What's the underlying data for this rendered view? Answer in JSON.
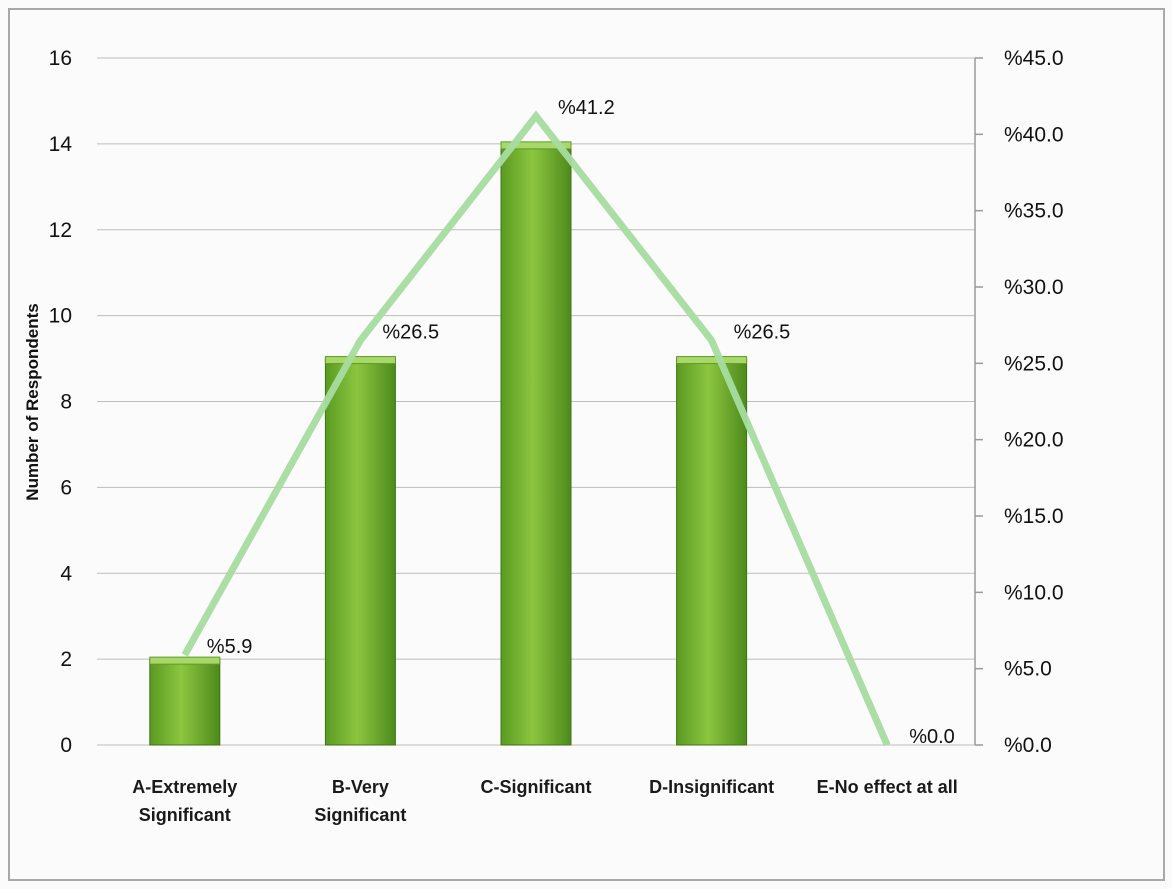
{
  "chart_data": {
    "type": "bar",
    "categories": [
      [
        "A-Extremely",
        "Significant"
      ],
      [
        "B-Very",
        "Significant"
      ],
      [
        "C-Significant"
      ],
      [
        "D-Insignificant"
      ],
      [
        "E-No effect at all"
      ]
    ],
    "series": [
      {
        "type": "bar",
        "axis": "left",
        "values": [
          2,
          9,
          14,
          9,
          0
        ],
        "color": "#6aa82a"
      },
      {
        "type": "line",
        "axis": "right",
        "values": [
          5.9,
          26.5,
          41.2,
          26.5,
          0.0
        ],
        "color": "#a6dca0",
        "labels": [
          "%5.9",
          "%26.5",
          "%41.2",
          "%26.5",
          "%0.0"
        ]
      }
    ],
    "ylabel": "Number of Respondents",
    "ylim": [
      0,
      16
    ],
    "yticks": [
      0,
      2,
      4,
      6,
      8,
      10,
      12,
      14,
      16
    ],
    "y2lim": [
      0,
      45
    ],
    "y2ticks": [
      "%0.0",
      "%5.0",
      "%10.0",
      "%15.0",
      "%20.0",
      "%25.0",
      "%30.0",
      "%35.0",
      "%40.0",
      "%45.0"
    ],
    "grid": true
  }
}
